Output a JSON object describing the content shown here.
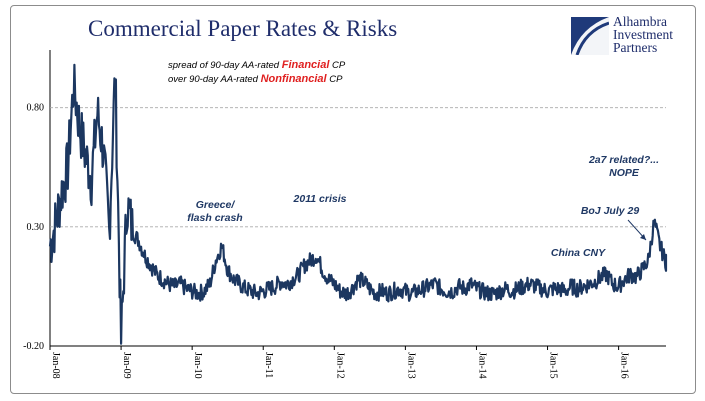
{
  "header": {
    "title": "Commercial Paper Rates & Risks",
    "logo_lines": [
      "Alhambra",
      "Investment",
      "Partners"
    ]
  },
  "colors": {
    "title": "#1f2d6b",
    "series": "#1c3760",
    "highlight": "#e02020",
    "grid": "#aaaaaa"
  },
  "chart_data": {
    "type": "line",
    "title": "Commercial Paper Rates & Risks",
    "legend_lines": [
      [
        "spread of 90-day AA-rated ",
        "Financial",
        " CP"
      ],
      [
        "over 90-day AA-rated ",
        "Nonfinancial",
        " CP"
      ]
    ],
    "ylim": [
      -0.2,
      1.0
    ],
    "y_ticks": [
      0.8,
      0.3,
      -0.2
    ],
    "y_tick_labels": [
      "0.80",
      "0.30",
      "-0.20"
    ],
    "x_ticks": [
      "Jan-08",
      "Jan-09",
      "Jan-10",
      "Jan-11",
      "Jan-12",
      "Jan-13",
      "Jan-14",
      "Jan-15",
      "Jan-16"
    ],
    "xlim": [
      "2008-01",
      "2016-09"
    ],
    "grid": "horizontal dashed",
    "series": [
      {
        "x": [
          "2008-01",
          "2008-02",
          "2008-03",
          "2008-04",
          "2008-05",
          "2008-06",
          "2008-07",
          "2008-08",
          "2008-09",
          "2008-10",
          "2008-11",
          "2008-12",
          "2009-01",
          "2009-02",
          "2009-03",
          "2009-04",
          "2009-05",
          "2009-06",
          "2009-07",
          "2009-08",
          "2009-09",
          "2009-10",
          "2009-11",
          "2009-12",
          "2010-01",
          "2010-02",
          "2010-03",
          "2010-04",
          "2010-05",
          "2010-06",
          "2010-07",
          "2010-08",
          "2010-09",
          "2010-10",
          "2010-11",
          "2010-12",
          "2011-01",
          "2011-02",
          "2011-03",
          "2011-04",
          "2011-05",
          "2011-06",
          "2011-07",
          "2011-08",
          "2011-09",
          "2011-10",
          "2011-11",
          "2011-12",
          "2012-01",
          "2012-02",
          "2012-03",
          "2012-04",
          "2012-05",
          "2012-06",
          "2012-07",
          "2012-08",
          "2012-09",
          "2012-10",
          "2012-11",
          "2012-12",
          "2013-01",
          "2013-02",
          "2013-03",
          "2013-04",
          "2013-05",
          "2013-06",
          "2013-07",
          "2013-08",
          "2013-09",
          "2013-10",
          "2013-11",
          "2013-12",
          "2014-01",
          "2014-02",
          "2014-03",
          "2014-04",
          "2014-05",
          "2014-06",
          "2014-07",
          "2014-08",
          "2014-09",
          "2014-10",
          "2014-11",
          "2014-12",
          "2015-01",
          "2015-02",
          "2015-03",
          "2015-04",
          "2015-05",
          "2015-06",
          "2015-07",
          "2015-08",
          "2015-09",
          "2015-10",
          "2015-11",
          "2015-12",
          "2016-01",
          "2016-02",
          "2016-03",
          "2016-04",
          "2016-05",
          "2016-06",
          "2016-07",
          "2016-08",
          "2016-09"
        ],
        "values": [
          0.22,
          0.32,
          0.45,
          0.55,
          0.9,
          0.72,
          0.6,
          0.5,
          0.78,
          0.62,
          0.28,
          0.95,
          -0.18,
          0.4,
          0.28,
          0.24,
          0.18,
          0.14,
          0.1,
          0.08,
          0.06,
          0.05,
          0.06,
          0.04,
          0.03,
          0.02,
          0.03,
          0.06,
          0.16,
          0.22,
          0.12,
          0.08,
          0.06,
          0.04,
          0.03,
          0.02,
          0.03,
          0.04,
          0.05,
          0.07,
          0.06,
          0.08,
          0.1,
          0.14,
          0.16,
          0.18,
          0.12,
          0.08,
          0.06,
          0.03,
          0.02,
          0.04,
          0.08,
          0.07,
          0.04,
          0.02,
          0.03,
          0.02,
          0.03,
          0.04,
          0.03,
          0.02,
          0.03,
          0.04,
          0.05,
          0.06,
          0.04,
          0.03,
          0.03,
          0.05,
          0.04,
          0.06,
          0.04,
          0.03,
          0.02,
          0.02,
          0.03,
          0.04,
          0.03,
          0.04,
          0.05,
          0.06,
          0.05,
          0.04,
          0.03,
          0.04,
          0.04,
          0.03,
          0.05,
          0.04,
          0.05,
          0.06,
          0.07,
          0.09,
          0.1,
          0.06,
          0.05,
          0.08,
          0.1,
          0.09,
          0.12,
          0.16,
          0.32,
          0.22,
          0.15
        ]
      }
    ],
    "annotations": [
      {
        "lines": [
          "Greece/",
          "flash crash"
        ],
        "at_x": "2010-05"
      },
      {
        "lines": [
          "2011 crisis"
        ],
        "at_x": "2011-12"
      },
      {
        "lines": [
          "China CNY"
        ],
        "at_x": "2015-09"
      },
      {
        "lines": [
          "BoJ July 29"
        ],
        "at_x": "2016-07"
      },
      {
        "lines": [
          "2a7 related?...",
          "NOPE"
        ],
        "at_x": "2016-08"
      }
    ]
  }
}
